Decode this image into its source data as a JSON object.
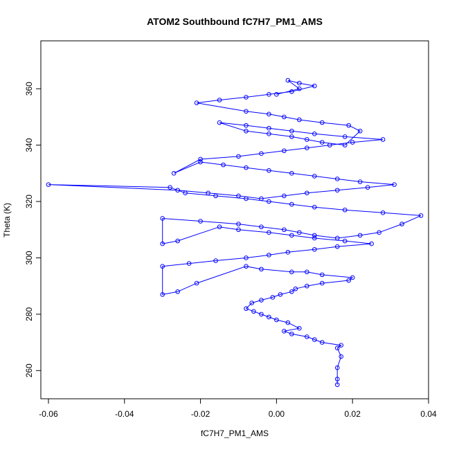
{
  "chart_data": {
    "type": "scatter",
    "title": "ATOM2 Southbound fC7H7_PM1_AMS",
    "xlabel": "fC7H7_PM1_AMS",
    "ylabel": "Theta (K)",
    "xlim": [
      -0.062,
      0.04
    ],
    "ylim": [
      250,
      377
    ],
    "x_ticks": [
      -0.06,
      -0.04,
      -0.02,
      0.0,
      0.02,
      0.04
    ],
    "x_tick_labels": [
      "-0.06",
      "-0.04",
      "-0.02",
      "0.00",
      "0.02",
      "0.04"
    ],
    "y_ticks": [
      260,
      280,
      300,
      320,
      340,
      360
    ],
    "y_tick_labels": [
      "260",
      "280",
      "300",
      "320",
      "340",
      "360"
    ],
    "grid": false,
    "legend": "none",
    "marker": "open-circle",
    "connected": true,
    "series": [
      {
        "color": "#0000ff",
        "x": [
          0.016,
          0.016,
          0.016,
          0.017,
          0.016,
          0.017,
          0.012,
          0.01,
          0.008,
          0.004,
          0.002,
          0.006,
          0.003,
          0.0,
          -0.002,
          -0.004,
          -0.006,
          -0.008,
          -0.0065,
          -0.004,
          -0.001,
          0.001,
          0.004,
          0.005,
          0.008,
          0.012,
          0.019,
          0.02,
          0.012,
          0.008,
          0.004,
          -0.004,
          -0.008,
          -0.021,
          -0.026,
          -0.03,
          -0.03,
          -0.023,
          -0.016,
          -0.008,
          -0.002,
          0.003,
          0.01,
          0.016,
          0.025,
          0.018,
          0.01,
          0.004,
          -0.002,
          -0.01,
          -0.015,
          -0.026,
          -0.03,
          -0.03,
          -0.02,
          -0.01,
          -0.004,
          0.002,
          0.006,
          0.01,
          0.016,
          0.022,
          0.027,
          0.033,
          0.038,
          0.028,
          0.018,
          0.01,
          0.004,
          -0.002,
          -0.008,
          -0.016,
          -0.024,
          -0.028,
          -0.06,
          -0.026,
          -0.018,
          -0.01,
          -0.004,
          0.002,
          0.008,
          0.016,
          0.024,
          0.031,
          0.022,
          0.016,
          0.01,
          0.004,
          -0.002,
          -0.008,
          -0.014,
          -0.02,
          -0.027,
          -0.02,
          -0.01,
          -0.004,
          0.002,
          0.008,
          0.014,
          0.02,
          0.028,
          0.018,
          0.01,
          0.004,
          -0.002,
          -0.008,
          -0.015,
          -0.008,
          -0.002,
          0.004,
          0.008,
          0.012,
          0.018,
          0.022,
          0.019,
          0.012,
          0.006,
          0.002,
          -0.002,
          -0.008,
          -0.021,
          -0.015,
          -0.008,
          -0.002,
          0.004,
          0.01,
          0.006,
          0.003,
          0.006,
          0.0
        ],
        "y": [
          255,
          257,
          261,
          265,
          268,
          269,
          270,
          271,
          272,
          273,
          274,
          275,
          277,
          278,
          279,
          280,
          281,
          282,
          284,
          285,
          286,
          287,
          288,
          289,
          290,
          291,
          292,
          293,
          294,
          295,
          295,
          296,
          297,
          291,
          288,
          287,
          297,
          298,
          299,
          300,
          301,
          302,
          303,
          304,
          305,
          306,
          307,
          308,
          309,
          310,
          311,
          306,
          305,
          314,
          313,
          312,
          311,
          310,
          309,
          308,
          307,
          308,
          309,
          312,
          315,
          316,
          317,
          318,
          319,
          320,
          321,
          322,
          323,
          325,
          326,
          324,
          323,
          322,
          321,
          322,
          323,
          324,
          325,
          326,
          327,
          328,
          329,
          330,
          331,
          332,
          333,
          334,
          330,
          335,
          336,
          337,
          338,
          339,
          340,
          341,
          342,
          343,
          344,
          345,
          346,
          347,
          348,
          345,
          344,
          343,
          342,
          341,
          340,
          345,
          347,
          348,
          349,
          350,
          351,
          352,
          355,
          356,
          357,
          358,
          359,
          361,
          362,
          363,
          360,
          358
        ]
      }
    ]
  }
}
